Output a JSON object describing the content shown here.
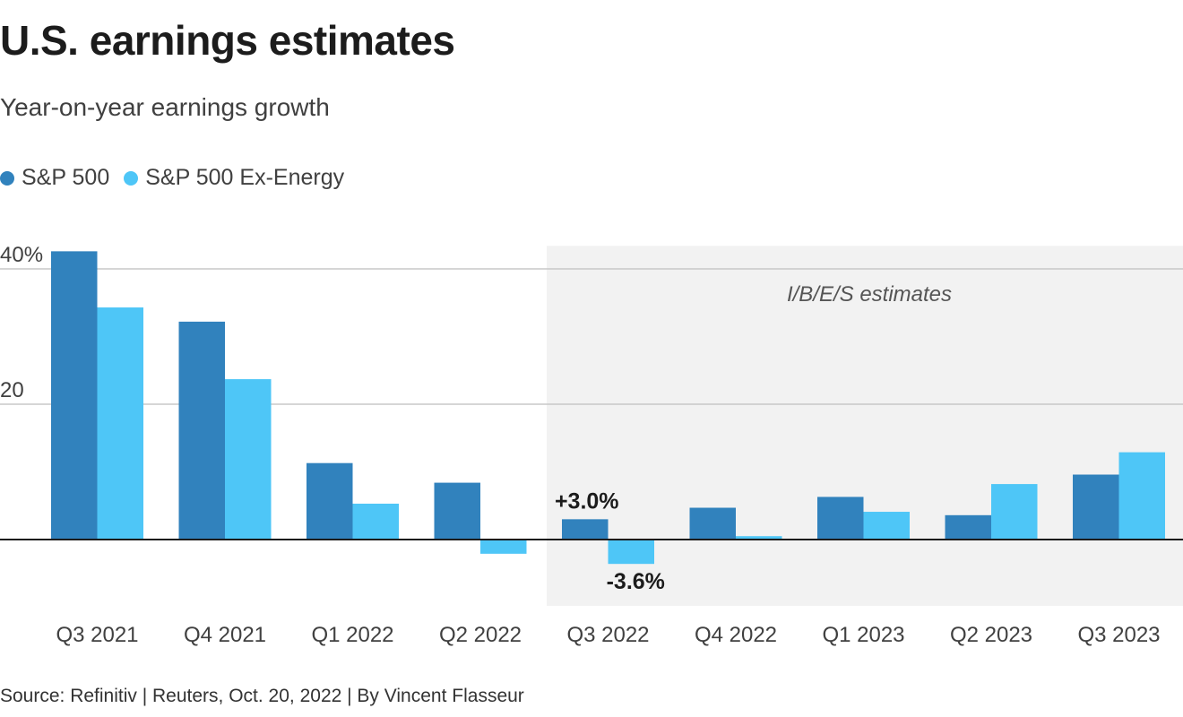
{
  "chart_data": {
    "type": "bar",
    "title": "U.S. earnings estimates",
    "subtitle": "Year-on-year earnings growth",
    "categories": [
      "Q3 2021",
      "Q4 2021",
      "Q1 2022",
      "Q2 2022",
      "Q3 2022",
      "Q4 2022",
      "Q1 2023",
      "Q2 2023",
      "Q3 2023"
    ],
    "series": [
      {
        "name": "S&P 500",
        "color": "#3182bd",
        "values": [
          42.6,
          32.2,
          11.3,
          8.4,
          3.0,
          4.7,
          6.3,
          3.6,
          9.6
        ]
      },
      {
        "name": "S&P 500 Ex-Energy",
        "color": "#4ec6f7",
        "values": [
          34.3,
          23.7,
          5.3,
          -2.1,
          -3.6,
          0.5,
          4.1,
          8.2,
          12.9
        ]
      }
    ],
    "yticks": [
      {
        "value": 40,
        "label": "40%"
      },
      {
        "value": 20,
        "label": "20"
      }
    ],
    "ylim": [
      -10,
      43
    ],
    "grid": true,
    "shaded_region": {
      "from": "Q3 2022",
      "to": "Q3 2023",
      "label": "I/B/E/S estimates"
    },
    "annotations": [
      {
        "category": "Q3 2022",
        "series": 0,
        "text": "+3.0%"
      },
      {
        "category": "Q3 2022",
        "series": 1,
        "text": "-3.6%"
      }
    ],
    "legend_position": "top-left",
    "source": "Source: Refinitiv | Reuters, Oct. 20, 2022 | By Vincent Flasseur"
  }
}
